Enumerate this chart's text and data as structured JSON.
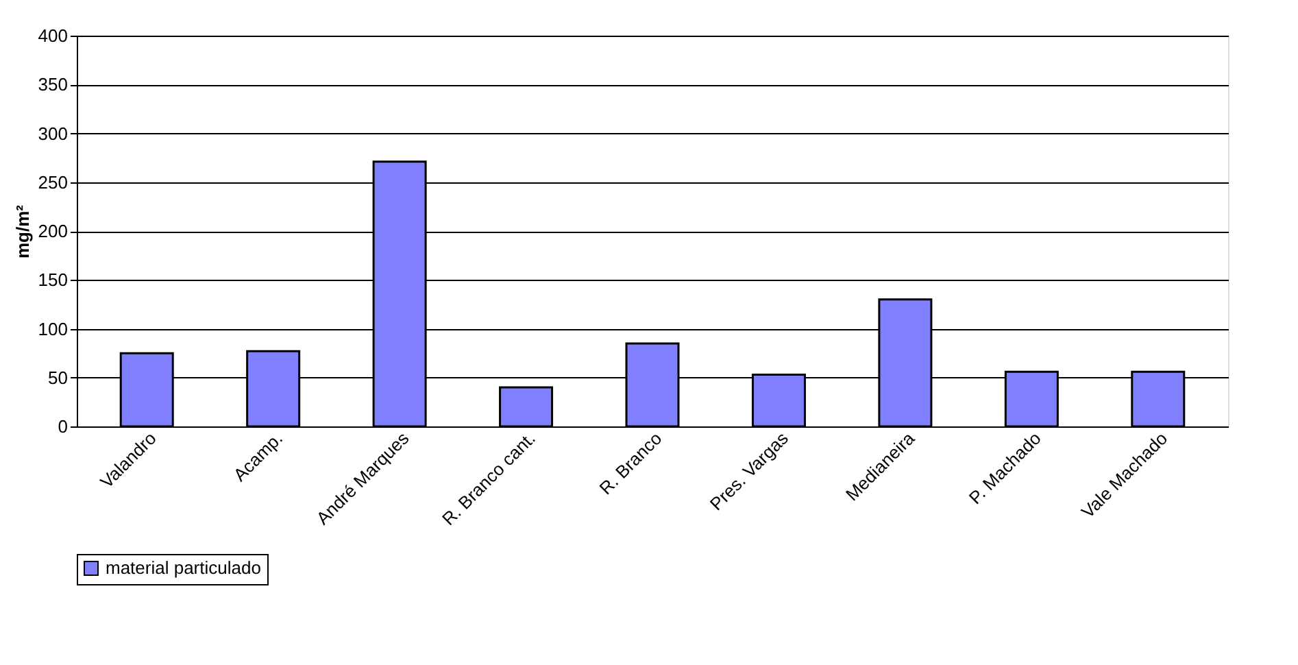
{
  "chart_data": {
    "type": "bar",
    "ylabel": "mg/m²",
    "categories": [
      "Valandro",
      "Acamp.",
      "André Marques",
      "R. Branco cant.",
      "R. Branco",
      "Pres. Vargas",
      "Medianeira",
      "P. Machado",
      "Vale Machado"
    ],
    "series": [
      {
        "name": "material particulado",
        "color": "#8080ff",
        "values": [
          75,
          77,
          271,
          40,
          85,
          53,
          130,
          56,
          56
        ]
      }
    ],
    "ylim": [
      0,
      400
    ],
    "yticks": [
      0,
      50,
      100,
      150,
      200,
      250,
      300,
      350,
      400
    ],
    "grid": "y",
    "legend": "bottom"
  }
}
